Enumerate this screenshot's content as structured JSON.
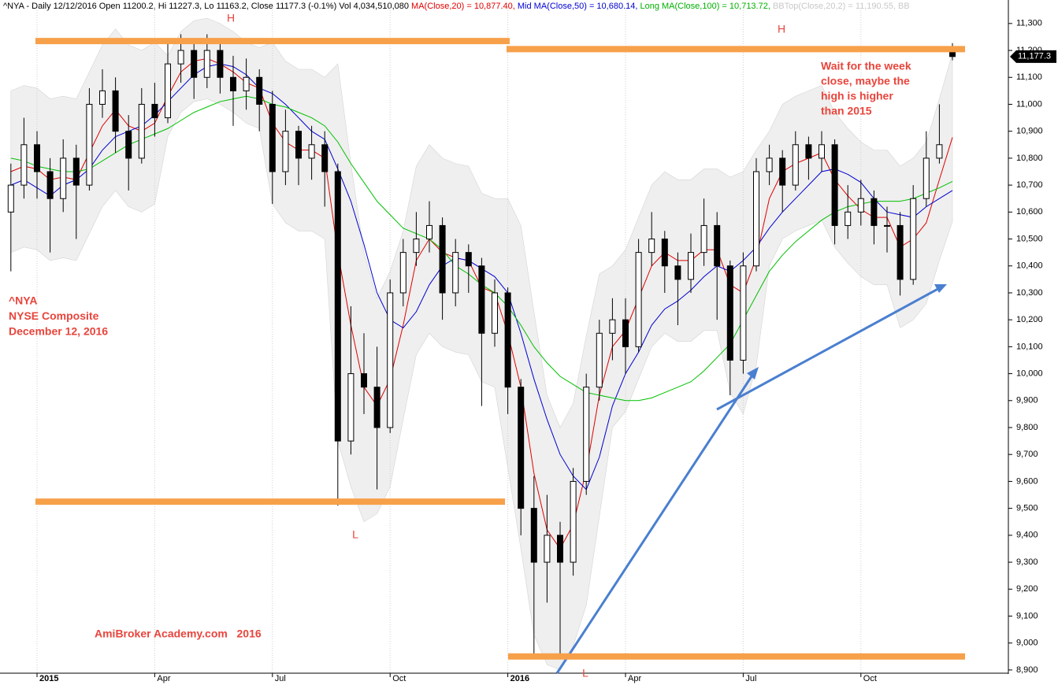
{
  "chart_data": {
    "type": "candlestick",
    "header": [
      {
        "text": "^NYA - Daily 12/12/2016 Open 11200.2, Hi 11227.3, Lo 11163.2, Close 11177.3 (-0.1%) Vol 4,034,510,080 ",
        "color": "#000000"
      },
      {
        "text": "MA(Close,20) = 10,877.40, ",
        "color": "#e00000"
      },
      {
        "text": "Mid MA(Close,50) = 10,680.14, ",
        "color": "#0000d0"
      },
      {
        "text": "Long MA(Close,100) = 10,713.72, ",
        "color": "#00b000"
      },
      {
        "text": "BBTop(Close,20,2) = 11,190.55, BB",
        "color": "#c8c8c8"
      }
    ],
    "categories": [
      null,
      null,
      "2015",
      null,
      null,
      null,
      null,
      null,
      null,
      null,
      null,
      "Apr",
      null,
      null,
      null,
      null,
      null,
      null,
      null,
      null,
      "Jul",
      null,
      null,
      null,
      null,
      null,
      null,
      null,
      null,
      "Oct",
      null,
      null,
      null,
      null,
      null,
      null,
      null,
      null,
      "2016",
      null,
      null,
      null,
      null,
      null,
      null,
      null,
      null,
      "Apr",
      null,
      null,
      null,
      null,
      null,
      null,
      null,
      null,
      "Jul",
      null,
      null,
      null,
      null,
      null,
      null,
      null,
      null,
      "Oct",
      null,
      null,
      null,
      null,
      null,
      null,
      null
    ],
    "open": [
      10600,
      10700,
      10850,
      10750,
      10650,
      10800,
      10700,
      11000,
      11050,
      10900,
      10800,
      11000,
      10950,
      11150,
      11200,
      11100,
      11200,
      11100,
      11050,
      11100,
      11000,
      10750,
      10900,
      10800,
      10850,
      10750,
      9750,
      10000,
      9950,
      9800,
      10300,
      10450,
      10500,
      10550,
      10300,
      10450,
      10400,
      10150,
      10300,
      9950,
      9500,
      9300,
      9400,
      9300,
      9600,
      9950,
      10150,
      10200,
      10100,
      10450,
      10500,
      10400,
      10350,
      10450,
      10550,
      10400,
      10050,
      10400,
      10750,
      10800,
      10700,
      10850,
      10800,
      10850,
      10550,
      10600,
      10650,
      10550,
      10550,
      10350,
      10650,
      10800,
      11200.2
    ],
    "high": [
      10780,
      10950,
      10900,
      10800,
      10870,
      10850,
      11060,
      11130,
      11100,
      10960,
      11060,
      11080,
      11230,
      11260,
      11240,
      11260,
      11230,
      11180,
      11170,
      11130,
      11050,
      10980,
      10920,
      10920,
      10900,
      10780,
      10250,
      10150,
      10100,
      10350,
      10500,
      10600,
      10640,
      10580,
      10500,
      10480,
      10430,
      10350,
      10320,
      9980,
      9620,
      9550,
      9450,
      9650,
      10000,
      10200,
      10280,
      10280,
      10500,
      10600,
      10530,
      10450,
      10520,
      10650,
      10600,
      10420,
      10450,
      10800,
      10850,
      10830,
      10900,
      10880,
      10900,
      10870,
      10700,
      10720,
      10680,
      10620,
      10600,
      10700,
      10900,
      11000,
      11227.3
    ],
    "low": [
      10380,
      10650,
      10650,
      10450,
      10600,
      10500,
      10680,
      10950,
      10820,
      10680,
      10780,
      10880,
      10930,
      11080,
      11020,
      11060,
      11040,
      10920,
      10980,
      10900,
      10630,
      10700,
      10700,
      10720,
      10620,
      9510,
      9700,
      9850,
      9570,
      9780,
      10250,
      10400,
      10450,
      10200,
      10250,
      10300,
      9880,
      10100,
      9850,
      9400,
      8940,
      9150,
      8940,
      9250,
      9550,
      9900,
      10050,
      10000,
      10080,
      10400,
      10300,
      10180,
      10300,
      10400,
      10200,
      9920,
      10000,
      10380,
      10700,
      10600,
      10680,
      10720,
      10750,
      10480,
      10500,
      10550,
      10480,
      10450,
      10290,
      10330,
      10620,
      10780,
      11163.2
    ],
    "close": [
      10700,
      10850,
      10750,
      10650,
      10800,
      10700,
      11000,
      11050,
      10900,
      10800,
      11000,
      10950,
      11150,
      11200,
      11100,
      11200,
      11100,
      11050,
      11100,
      11000,
      10750,
      10900,
      10800,
      10850,
      10750,
      9750,
      10000,
      9950,
      9800,
      10300,
      10450,
      10500,
      10550,
      10300,
      10450,
      10400,
      10150,
      10300,
      9950,
      9500,
      9300,
      9400,
      9300,
      9600,
      9950,
      10150,
      10200,
      10100,
      10450,
      10500,
      10400,
      10350,
      10450,
      10550,
      10400,
      10050,
      10400,
      10750,
      10800,
      10700,
      10850,
      10800,
      10850,
      10550,
      10600,
      10650,
      10550,
      10550,
      10350,
      10650,
      10800,
      10850,
      11177.3
    ],
    "series": [
      {
        "color": "#e00000",
        "values": [
          10750,
          10770,
          10760,
          10720,
          10730,
          10720,
          10820,
          10920,
          10980,
          10920,
          10900,
          10930,
          11030,
          11120,
          11160,
          11170,
          11150,
          11120,
          11080,
          11060,
          10930,
          10860,
          10830,
          10830,
          10800,
          10450,
          10180,
          9950,
          9880,
          9980,
          10180,
          10420,
          10500,
          10450,
          10430,
          10420,
          10320,
          10300,
          10150,
          9950,
          9630,
          9420,
          9350,
          9440,
          9640,
          9920,
          10100,
          10160,
          10280,
          10400,
          10450,
          10420,
          10420,
          10460,
          10460,
          10330,
          10300,
          10430,
          10650,
          10750,
          10780,
          10800,
          10820,
          10720,
          10660,
          10610,
          10580,
          10580,
          10470,
          10500,
          10560,
          10720,
          10877.4
        ]
      },
      {
        "color": "#0000d0",
        "values": [
          10700,
          10720,
          10690,
          10660,
          10700,
          10720,
          10760,
          10830,
          10880,
          10900,
          10920,
          10960,
          11010,
          11060,
          11110,
          11140,
          11150,
          11140,
          11110,
          11060,
          11040,
          11000,
          10950,
          10900,
          10870,
          10760,
          10640,
          10480,
          10300,
          10200,
          10170,
          10230,
          10330,
          10400,
          10430,
          10420,
          10390,
          10360,
          10300,
          10150,
          9980,
          9830,
          9700,
          9620,
          9570,
          9690,
          9880,
          10000,
          10080,
          10180,
          10240,
          10270,
          10310,
          10360,
          10400,
          10380,
          10420,
          10470,
          10540,
          10600,
          10650,
          10700,
          10750,
          10760,
          10740,
          10710,
          10650,
          10600,
          10590,
          10580,
          10620,
          10650,
          10680.14
        ]
      },
      {
        "color": "#00c000",
        "values": [
          10800,
          10790,
          10770,
          10760,
          10750,
          10750,
          10760,
          10790,
          10820,
          10850,
          10870,
          10890,
          10910,
          10940,
          10970,
          10990,
          11010,
          11020,
          11030,
          11020,
          11000,
          10990,
          10970,
          10950,
          10920,
          10860,
          10780,
          10710,
          10640,
          10590,
          10540,
          10520,
          10500,
          10460,
          10400,
          10370,
          10330,
          10300,
          10250,
          10180,
          10100,
          10040,
          9990,
          9960,
          9930,
          9920,
          9910,
          9900,
          9900,
          9910,
          9930,
          9950,
          9970,
          10010,
          10060,
          10110,
          10200,
          10290,
          10380,
          10440,
          10490,
          10530,
          10570,
          10600,
          10620,
          10630,
          10640,
          10640,
          10640,
          10650,
          10670,
          10690,
          10713.72
        ]
      }
    ],
    "bollinger": {
      "color": "#efefef",
      "edge": "#d4d4d4",
      "upper": [
        11050,
        11070,
        11060,
        11020,
        11030,
        11020,
        11120,
        11220,
        11280,
        11220,
        11200,
        11230,
        11180,
        11270,
        11310,
        11320,
        11300,
        11270,
        11230,
        11210,
        11230,
        11160,
        11130,
        11130,
        11100,
        11150,
        10780,
        10450,
        10280,
        10380,
        10530,
        10770,
        10850,
        10800,
        10780,
        10770,
        10670,
        10650,
        10650,
        10550,
        10230,
        9920,
        9800,
        9890,
        10140,
        10370,
        10400,
        10460,
        10580,
        10700,
        10750,
        10720,
        10720,
        10760,
        10760,
        10730,
        10750,
        10830,
        10900,
        11000,
        11030,
        11050,
        11070,
        10970,
        10910,
        10860,
        10830,
        10830,
        10770,
        10800,
        10860,
        11020,
        11190.55
      ],
      "lower": [
        10450,
        10470,
        10460,
        10420,
        10430,
        10420,
        10520,
        10620,
        10680,
        10620,
        10600,
        10630,
        10880,
        10970,
        11010,
        11020,
        11000,
        10970,
        10930,
        10910,
        10630,
        10560,
        10530,
        10530,
        10500,
        9750,
        9580,
        9450,
        9480,
        9580,
        9830,
        10070,
        10150,
        10100,
        10080,
        10070,
        9970,
        9950,
        9650,
        9350,
        9030,
        8920,
        8900,
        8990,
        9140,
        9470,
        9800,
        9860,
        9980,
        10100,
        10150,
        10120,
        10120,
        10160,
        10160,
        9930,
        9850,
        10030,
        10400,
        10500,
        10530,
        10550,
        10570,
        10470,
        10410,
        10360,
        10330,
        10330,
        10170,
        10200,
        10260,
        10420,
        10564.25
      ]
    },
    "ylim": [
      8888,
      11358
    ],
    "yticks": [
      {
        "value": 8900,
        "label": "8,900"
      },
      {
        "value": 9000,
        "label": "9,000"
      },
      {
        "value": 9100,
        "label": "9,100"
      },
      {
        "value": 9200,
        "label": "9,200"
      },
      {
        "value": 9300,
        "label": "9,300"
      },
      {
        "value": 9400,
        "label": "9,400"
      },
      {
        "value": 9500,
        "label": "9,500"
      },
      {
        "value": 9600,
        "label": "9,600"
      },
      {
        "value": 9700,
        "label": "9,700"
      },
      {
        "value": 9800,
        "label": "9,800"
      },
      {
        "value": 9900,
        "label": "9,900"
      },
      {
        "value": 10000,
        "label": "10,000"
      },
      {
        "value": 10100,
        "label": "10,100"
      },
      {
        "value": 10200,
        "label": "10,200"
      },
      {
        "value": 10300,
        "label": "10,300"
      },
      {
        "value": 10400,
        "label": "10,400"
      },
      {
        "value": 10500,
        "label": "10,500"
      },
      {
        "value": 10600,
        "label": "10,600"
      },
      {
        "value": 10700,
        "label": "10,700"
      },
      {
        "value": 10800,
        "label": "10,800"
      },
      {
        "value": 10900,
        "label": "10,900"
      },
      {
        "value": 11000,
        "label": "11,000"
      },
      {
        "value": 11100,
        "label": "11,100"
      },
      {
        "value": 11200,
        "label": "11,200"
      },
      {
        "value": 11300,
        "label": "11,300"
      }
    ],
    "levels": [
      {
        "value": 11235,
        "color": "#f7a04a"
      },
      {
        "value": 11205,
        "color": "#f7a04a"
      },
      {
        "value": 9525,
        "color": "#f7a04a"
      },
      {
        "value": 8950,
        "color": "#f7a04a"
      }
    ],
    "price_tag": {
      "value": 11177.3,
      "label": "11,177.3"
    },
    "annotation_color": "#e8453c",
    "annotations": [
      {
        "lines": [
          "H"
        ]
      },
      {
        "lines": [
          "H"
        ]
      },
      {
        "lines": [
          "L"
        ]
      },
      {
        "lines": [
          "L"
        ]
      },
      {
        "lines": [
          "^NYA",
          "NYSE Composite",
          "December 12, 2016"
        ]
      },
      {
        "lines": [
          "Wait for the week",
          "close, maybe the",
          "high is higher",
          "than 2015"
        ]
      },
      {
        "lines": [
          "AmiBroker Academy.com   2016"
        ]
      }
    ],
    "grid": "x"
  }
}
